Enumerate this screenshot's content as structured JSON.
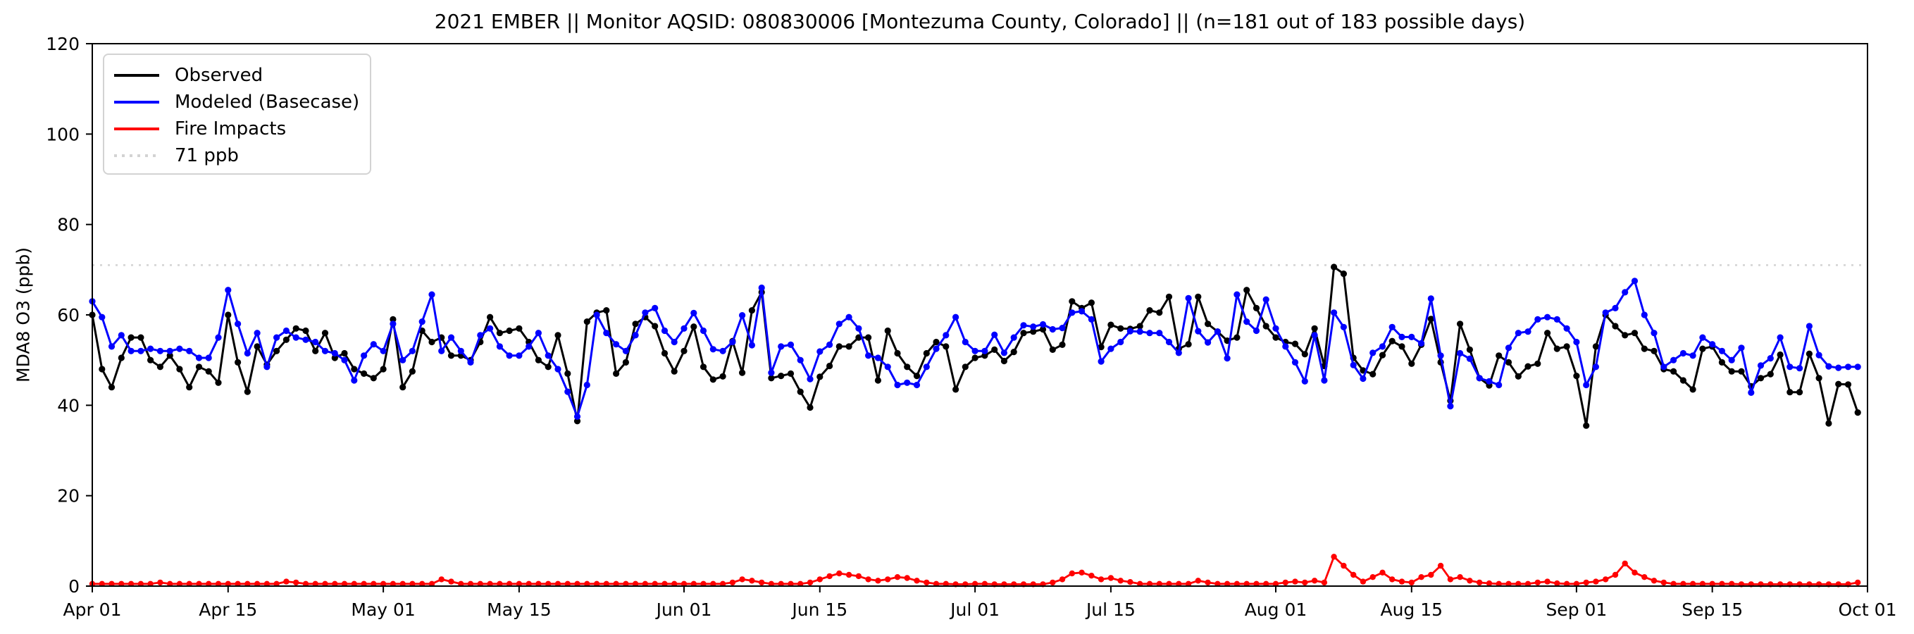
{
  "figure": {
    "background": "#ffffff"
  },
  "chart_data": {
    "type": "line",
    "title": "2021 EMBER || Monitor AQSID: 080830006 [Montezuma County, Colorado] || (n=181 out of 183 possible days)",
    "xlabel": "",
    "ylabel": "MDA8 O3 (ppb)",
    "ylim": [
      0,
      120
    ],
    "yticks": [
      0,
      20,
      40,
      60,
      80,
      100,
      120
    ],
    "grid": false,
    "legend_position": "upper left",
    "x_axis": {
      "start_label": "Apr 01",
      "end_label": "Oct 01",
      "total_days": 183,
      "ticks": [
        {
          "day": 0,
          "label": "Apr 01"
        },
        {
          "day": 14,
          "label": "Apr 15"
        },
        {
          "day": 30,
          "label": "May 01"
        },
        {
          "day": 44,
          "label": "May 15"
        },
        {
          "day": 61,
          "label": "Jun 01"
        },
        {
          "day": 75,
          "label": "Jun 15"
        },
        {
          "day": 91,
          "label": "Jul 01"
        },
        {
          "day": 105,
          "label": "Jul 15"
        },
        {
          "day": 122,
          "label": "Aug 01"
        },
        {
          "day": 136,
          "label": "Aug 15"
        },
        {
          "day": 153,
          "label": "Sep 01"
        },
        {
          "day": 167,
          "label": "Sep 15"
        },
        {
          "day": 183,
          "label": "Oct 01"
        }
      ]
    },
    "threshold": {
      "value": 71,
      "label": "71 ppb",
      "color": "#d3d3d3",
      "style": "dotted"
    },
    "series": [
      {
        "name": "Observed",
        "color": "#000000",
        "values": [
          60,
          48,
          44,
          50.5,
          55,
          55,
          50,
          48.5,
          51,
          48,
          44,
          48.5,
          47.5,
          45,
          60,
          49.5,
          43,
          53,
          49,
          52,
          54.5,
          57,
          56.5,
          52,
          56,
          50.5,
          51.5,
          48,
          47,
          46,
          48,
          59,
          44,
          47.5,
          56.5,
          54,
          55,
          51,
          51,
          50,
          54,
          59.5,
          56,
          56.5,
          57,
          54,
          50,
          48.5,
          55.5,
          47,
          36.5,
          58.5,
          60.5,
          61,
          47,
          49.5,
          58,
          59.5,
          57.5,
          51.5,
          47.5,
          52,
          57.4,
          48.5,
          45.7,
          46.4,
          54.2,
          47.2,
          61,
          65,
          46,
          46.5,
          47,
          43,
          39.5,
          46.3,
          48.7,
          53,
          53,
          55,
          55,
          45.5,
          56.5,
          51.5,
          48.5,
          46.5,
          51.5,
          54,
          53,
          43.5,
          48.5,
          50.5,
          51,
          52.3,
          49.8,
          51.8,
          56,
          56.3,
          56.8,
          52.3,
          53.4,
          63,
          61.5,
          62.7,
          52.9,
          57.8,
          57,
          56.9,
          57.5,
          61,
          60.5,
          64,
          52.5,
          53.5,
          64,
          58,
          56.3,
          54.3,
          55,
          65.5,
          61.5,
          57.5,
          55,
          54,
          53.6,
          51.3,
          57,
          48.7,
          70.6,
          69.1,
          50.5,
          47.7,
          46.9,
          51.1,
          54.2,
          53,
          49.2,
          53.4,
          59.1,
          49.5,
          41,
          58,
          52.3,
          46,
          44.4,
          51,
          49.5,
          46.4,
          48.6,
          49.2,
          56,
          52.5,
          53,
          46.5,
          35.5,
          53,
          60,
          57.5,
          55.5,
          56,
          52.5,
          52,
          48,
          47.5,
          45.5,
          43.5,
          52.5,
          53,
          49.5,
          47.5,
          47.5,
          44.2,
          46,
          46.9,
          51.2,
          42.9,
          42.9,
          51.4,
          46,
          36,
          44.7,
          44.6,
          38.4
        ]
      },
      {
        "name": "Modeled (Basecase)",
        "color": "#0000ff",
        "values": [
          63,
          59.5,
          53,
          55.5,
          52,
          52,
          52.5,
          52,
          52,
          52.5,
          52,
          50.5,
          50.5,
          55,
          65.5,
          58,
          51.5,
          56,
          48.5,
          55,
          56.5,
          55,
          54.5,
          54,
          52,
          51.5,
          50,
          45.5,
          51,
          53.5,
          52,
          58,
          50,
          52,
          58.5,
          64.5,
          52,
          55,
          52,
          49.5,
          55.5,
          57,
          53,
          51,
          51,
          53,
          56,
          51,
          48,
          43,
          37.5,
          44.5,
          60,
          56,
          53.5,
          52,
          55.5,
          60.5,
          61.5,
          56.5,
          54,
          57,
          60.4,
          56.5,
          52.4,
          52,
          54,
          59.9,
          53.3,
          66,
          47.2,
          53,
          53.4,
          50,
          45.8,
          51.9,
          53.4,
          58,
          59.5,
          57,
          51,
          50.5,
          48.5,
          44.5,
          45,
          44.5,
          48.5,
          52.5,
          55.5,
          59.5,
          54,
          52,
          52,
          55.6,
          51.6,
          55,
          57.7,
          57.4,
          57.9,
          56.8,
          57.1,
          60.5,
          60.8,
          59,
          49.7,
          52.5,
          54,
          56.4,
          56.3,
          56,
          56,
          54,
          51.6,
          63.7,
          56.4,
          53.9,
          56.3,
          50.4,
          64.5,
          58.5,
          56.5,
          63.4,
          57,
          53,
          49.5,
          45.3,
          55.5,
          45.5,
          60.5,
          57.3,
          48.9,
          45.9,
          51.6,
          53,
          57.3,
          55.1,
          55.1,
          53.7,
          63.6,
          51,
          39.8,
          51.5,
          50.3,
          46,
          45.3,
          44.5,
          52.7,
          56,
          56.3,
          59,
          59.5,
          59,
          57,
          54,
          44.5,
          48.5,
          60.5,
          61.5,
          65,
          67.5,
          60,
          56,
          48.5,
          50,
          51.5,
          51,
          55,
          53.5,
          52,
          50,
          52.7,
          42.8,
          48.8,
          50.4,
          55,
          48.5,
          48.2,
          57.5,
          51.1,
          48.6,
          48.3,
          48.5,
          48.5
        ]
      },
      {
        "name": "Fire Impacts",
        "color": "#ff0000",
        "values": [
          0.5,
          0.5,
          0.5,
          0.5,
          0.5,
          0.5,
          0.5,
          0.8,
          0.5,
          0.5,
          0.5,
          0.5,
          0.5,
          0.5,
          0.5,
          0.5,
          0.5,
          0.5,
          0.5,
          0.5,
          1,
          0.8,
          0.5,
          0.5,
          0.5,
          0.5,
          0.5,
          0.5,
          0.5,
          0.5,
          0.5,
          0.5,
          0.5,
          0.5,
          0.5,
          0.5,
          1.5,
          1,
          0.5,
          0.5,
          0.5,
          0.5,
          0.5,
          0.5,
          0.5,
          0.5,
          0.5,
          0.5,
          0.5,
          0.5,
          0.5,
          0.5,
          0.5,
          0.5,
          0.5,
          0.5,
          0.5,
          0.5,
          0.5,
          0.5,
          0.5,
          0.5,
          0.5,
          0.5,
          0.5,
          0.5,
          0.8,
          1.5,
          1.2,
          0.8,
          0.5,
          0.5,
          0.5,
          0.5,
          0.8,
          1.5,
          2.2,
          2.8,
          2.5,
          2.2,
          1.5,
          1.2,
          1.5,
          2,
          1.8,
          1.2,
          0.8,
          0.5,
          0.5,
          0.4,
          0.4,
          0.5,
          0.5,
          0.4,
          0.4,
          0.4,
          0.4,
          0.4,
          0.4,
          0.8,
          1.5,
          2.8,
          3,
          2.3,
          1.5,
          1.8,
          1.2,
          0.9,
          0.5,
          0.5,
          0.5,
          0.5,
          0.5,
          0.5,
          1.2,
          0.8,
          0.5,
          0.5,
          0.5,
          0.5,
          0.5,
          0.5,
          0.5,
          0.8,
          1,
          0.8,
          1.2,
          0.8,
          6.5,
          4.5,
          2.5,
          1,
          2,
          3,
          1.5,
          1,
          0.8,
          2,
          2.5,
          4.5,
          1.5,
          2,
          1.2,
          0.8,
          0.6,
          0.5,
          0.5,
          0.5,
          0.5,
          0.8,
          1,
          0.6,
          0.5,
          0.5,
          0.8,
          1,
          1.5,
          2.5,
          5,
          3,
          2,
          1.2,
          0.8,
          0.5,
          0.5,
          0.5,
          0.5,
          0.5,
          0.5,
          0.5,
          0.4,
          0.4,
          0.4,
          0.4,
          0.4,
          0.4,
          0.4,
          0.4,
          0.4,
          0.4,
          0.4,
          0.4,
          0.8
        ]
      }
    ],
    "layout": {
      "plot_left": 131,
      "plot_right": 2651,
      "plot_top": 62,
      "plot_bottom": 832,
      "axis_color": "#000000"
    }
  }
}
